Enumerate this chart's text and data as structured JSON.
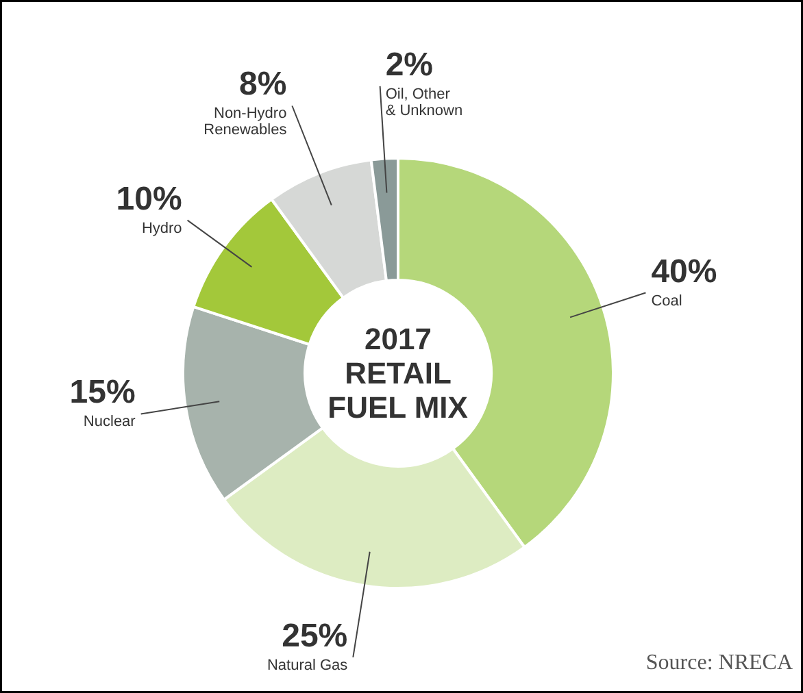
{
  "chart_data": {
    "type": "donut",
    "title": "2017\nRETAIL\nFUEL MIX",
    "categories": [
      "Coal",
      "Natural Gas",
      "Nuclear",
      "Hydro",
      "Non-Hydro\nRenewables",
      "Oil, Other\n& Unknown"
    ],
    "values": [
      40,
      25,
      15,
      10,
      8,
      2
    ],
    "value_labels": [
      "40%",
      "25%",
      "15%",
      "10%",
      "8%",
      "2%"
    ],
    "colors": [
      "#b5d77a",
      "#ddecc2",
      "#a7b3ac",
      "#a3c83a",
      "#d6d8d6",
      "#8a9a98"
    ],
    "annotations": [
      "Source: NRECA"
    ]
  }
}
